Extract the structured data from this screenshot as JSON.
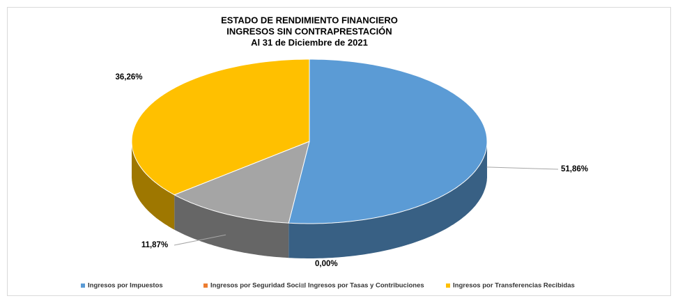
{
  "chart_data": {
    "type": "pie",
    "title": [
      "ESTADO DE RENDIMIENTO FINANCIERO",
      "INGRESOS SIN CONTRAPRESTACIÓN",
      "Al 31 de Diciembre de 2021"
    ],
    "categories": [
      "Ingresos por Impuestos",
      "Ingresos por Seguridad Social",
      "Ingresos por Tasas y Contribuciones",
      "Ingresos por Transferencias Recibidas"
    ],
    "values": [
      51.86,
      0,
      11.87,
      36.26
    ],
    "value_labels": [
      "51,86%",
      "0,00%",
      "11,87%",
      "36,26%"
    ],
    "colors": [
      "#5b9bd5",
      "#ed7d31",
      "#a5a5a5",
      "#ffc000"
    ],
    "legend": "bottom"
  }
}
